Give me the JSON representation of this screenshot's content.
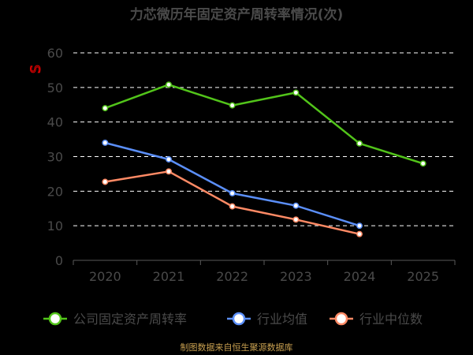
{
  "colors": {
    "background": "#000000",
    "text": "#4a4a4a",
    "grid": "#ffffff",
    "axis": "#5a5a5a",
    "source": "#c8a050",
    "watermark": "#ff0000"
  },
  "chart_data": {
    "type": "line",
    "title": "力芯微历年固定资产周转率情况(次)",
    "categories": [
      "2020",
      "2021",
      "2022",
      "2023",
      "2024",
      "2025"
    ],
    "ylim": [
      0,
      60
    ],
    "yticks": [
      0,
      10,
      20,
      30,
      40,
      50,
      60
    ],
    "grid": true,
    "legend_position": "bottom",
    "series": [
      {
        "name": "公司固定资产周转率",
        "color": "#52c41a",
        "values": [
          44.0,
          50.8,
          44.8,
          48.5,
          33.8,
          28.0
        ]
      },
      {
        "name": "行业均值",
        "color": "#5b8ff9",
        "values": [
          34.0,
          29.2,
          19.4,
          15.8,
          10.0,
          null
        ]
      },
      {
        "name": "行业中位数",
        "color": "#ff8a65",
        "values": [
          22.7,
          25.7,
          15.6,
          11.8,
          7.6,
          null
        ]
      }
    ],
    "source": "制图数据来自恒生聚源数据库",
    "watermark": "S"
  }
}
